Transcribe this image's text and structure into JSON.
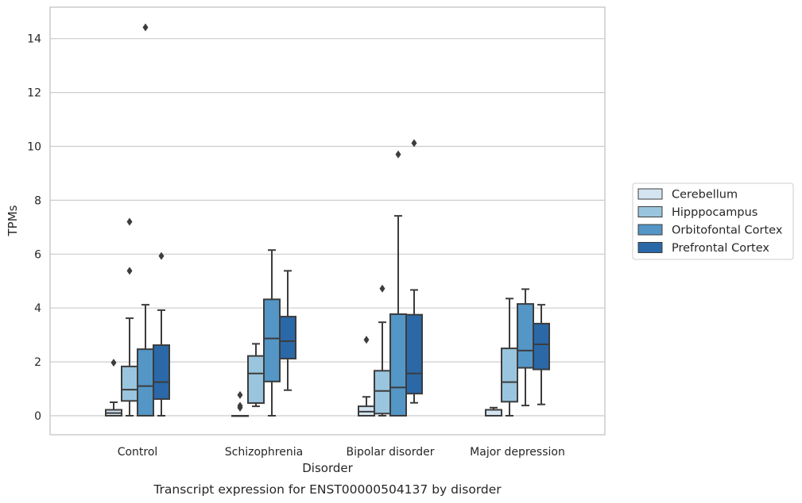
{
  "chart_data": {
    "type": "box",
    "xlabel": "Disorder",
    "ylabel": "TPMs",
    "caption": "Transcript expression for ENST00000504137 by disorder",
    "ylim": [
      -0.7,
      15.2
    ],
    "yticks": [
      0,
      2,
      4,
      6,
      8,
      10,
      12,
      14
    ],
    "grid": true,
    "legend_position": "right",
    "categories": [
      "Control",
      "Schizophrenia",
      "Bipolar disorder",
      "Major depression"
    ],
    "series": [
      {
        "name": "Cerebellum",
        "color": "#d4e4f1",
        "boxes": [
          {
            "whislo": 0.0,
            "q1": 0.0,
            "med": 0.1,
            "q3": 0.22,
            "whishi": 0.5,
            "fliers": [
              1.97
            ]
          },
          {
            "whislo": 0.0,
            "q1": 0.0,
            "med": 0.0,
            "q3": 0.0,
            "whishi": 0.0,
            "fliers": [
              0.3,
              0.37,
              0.77
            ]
          },
          {
            "whislo": 0.0,
            "q1": 0.0,
            "med": 0.15,
            "q3": 0.35,
            "whishi": 0.7,
            "fliers": [
              2.82
            ]
          },
          {
            "whislo": 0.0,
            "q1": 0.0,
            "med": 0.0,
            "q3": 0.22,
            "whishi": 0.3,
            "fliers": []
          }
        ]
      },
      {
        "name": "Hipppocampus",
        "color": "#9ac5de",
        "boxes": [
          {
            "whislo": 0.0,
            "q1": 0.55,
            "med": 0.97,
            "q3": 1.83,
            "whishi": 3.62,
            "fliers": [
              5.38,
              7.2
            ]
          },
          {
            "whislo": 0.35,
            "q1": 0.47,
            "med": 1.57,
            "q3": 2.22,
            "whishi": 2.67,
            "fliers": []
          },
          {
            "whislo": 0.0,
            "q1": 0.08,
            "med": 0.92,
            "q3": 1.67,
            "whishi": 3.47,
            "fliers": [
              4.72
            ]
          },
          {
            "whislo": 0.0,
            "q1": 0.52,
            "med": 1.25,
            "q3": 2.5,
            "whishi": 4.35,
            "fliers": []
          }
        ]
      },
      {
        "name": "Orbitofontal Cortex",
        "color": "#5496c6",
        "boxes": [
          {
            "whislo": 0.0,
            "q1": 0.0,
            "med": 1.1,
            "q3": 2.47,
            "whishi": 4.12,
            "fliers": [
              14.42
            ]
          },
          {
            "whislo": 0.0,
            "q1": 1.27,
            "med": 2.87,
            "q3": 4.32,
            "whishi": 6.15,
            "fliers": []
          },
          {
            "whislo": 0.0,
            "q1": 0.0,
            "med": 1.05,
            "q3": 3.77,
            "whishi": 7.42,
            "fliers": [
              9.7
            ]
          },
          {
            "whislo": 0.38,
            "q1": 1.78,
            "med": 2.42,
            "q3": 4.15,
            "whishi": 4.7,
            "fliers": []
          }
        ]
      },
      {
        "name": "Prefrontal Cortex",
        "color": "#2a68a8",
        "boxes": [
          {
            "whislo": 0.0,
            "q1": 0.62,
            "med": 1.25,
            "q3": 2.62,
            "whishi": 3.92,
            "fliers": [
              5.93
            ]
          },
          {
            "whislo": 0.95,
            "q1": 2.12,
            "med": 2.77,
            "q3": 3.68,
            "whishi": 5.38,
            "fliers": []
          },
          {
            "whislo": 0.48,
            "q1": 0.82,
            "med": 1.57,
            "q3": 3.75,
            "whishi": 4.67,
            "fliers": [
              10.12
            ]
          },
          {
            "whislo": 0.42,
            "q1": 1.72,
            "med": 2.65,
            "q3": 3.42,
            "whishi": 4.12,
            "fliers": []
          }
        ]
      }
    ]
  }
}
